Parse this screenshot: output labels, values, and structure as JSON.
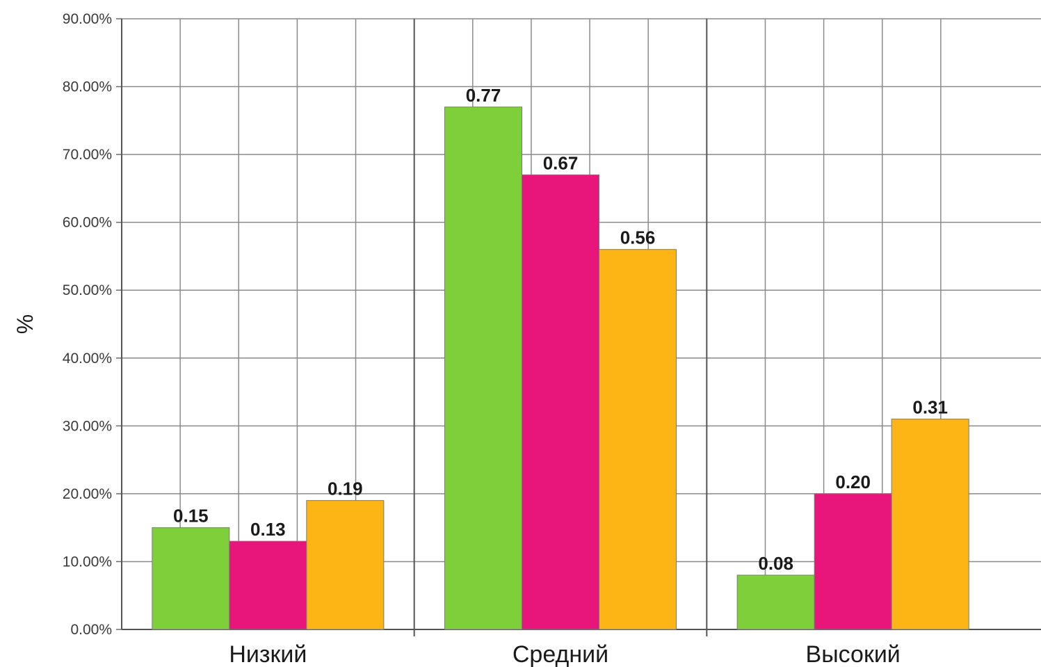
{
  "chart_data": {
    "type": "bar",
    "categories": [
      "Низкий",
      "Средний",
      "Высокий"
    ],
    "series": [
      {
        "values": [
          0.15,
          0.77,
          0.08
        ],
        "labels": [
          "0.15",
          "0.77",
          "0.08"
        ],
        "color": "#7fcf3a"
      },
      {
        "values": [
          0.13,
          0.67,
          0.2
        ],
        "labels": [
          "0.13",
          "0.67",
          "0.20"
        ],
        "color": "#e8167b"
      },
      {
        "values": [
          0.19,
          0.56,
          0.31
        ],
        "labels": [
          "0.19",
          "0.56",
          "0.31"
        ],
        "color": "#fdb515"
      }
    ],
    "yticks": [
      "0.00%",
      "10.00%",
      "20.00%",
      "30.00%",
      "40.00%",
      "50.00%",
      "60.00%",
      "70.00%",
      "80.00%",
      "90.00%"
    ],
    "ylim": [
      0,
      0.9
    ],
    "ylabel": "%",
    "xlabel": "",
    "title": "",
    "grid": true,
    "legend": "none"
  }
}
